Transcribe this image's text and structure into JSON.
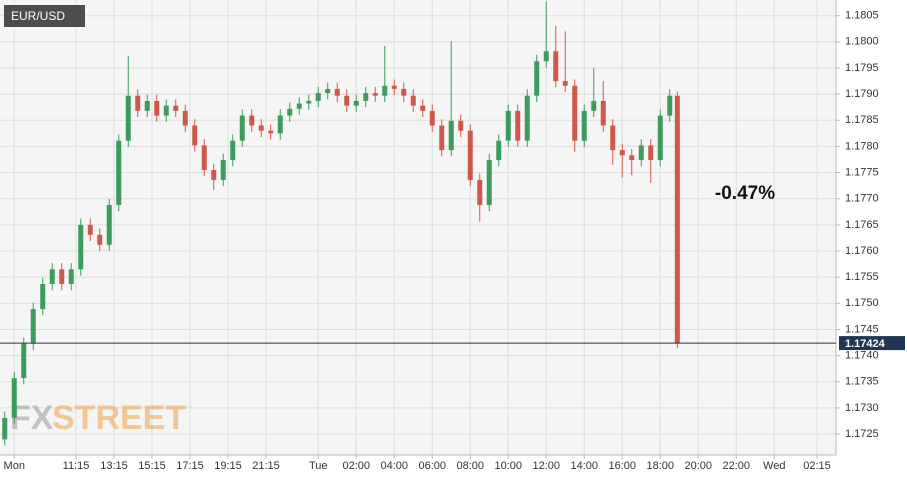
{
  "chart_data": {
    "type": "candlestick",
    "title": "EUR/USD",
    "annotation": "-0.47%",
    "watermark": [
      "FX",
      "STREET"
    ],
    "last_price": 1.17424,
    "up_color": "#3d9b5e",
    "down_color": "#d0584a",
    "grid": true,
    "xlim": [
      7.25,
      51.25
    ],
    "ylim": [
      1.1721,
      1.1808
    ],
    "xticks": [
      {
        "value": 8,
        "label": "Mon"
      },
      {
        "value": 11.25,
        "label": "11:15"
      },
      {
        "value": 13.25,
        "label": "13:15"
      },
      {
        "value": 15.25,
        "label": "15:15"
      },
      {
        "value": 17.25,
        "label": "17:15"
      },
      {
        "value": 19.25,
        "label": "19:15"
      },
      {
        "value": 21.25,
        "label": "21:15"
      },
      {
        "value": 24,
        "label": "Tue"
      },
      {
        "value": 26,
        "label": "02:00"
      },
      {
        "value": 28,
        "label": "04:00"
      },
      {
        "value": 30,
        "label": "06:00"
      },
      {
        "value": 32,
        "label": "08:00"
      },
      {
        "value": 34,
        "label": "10:00"
      },
      {
        "value": 36,
        "label": "12:00"
      },
      {
        "value": 38,
        "label": "14:00"
      },
      {
        "value": 40,
        "label": "16:00"
      },
      {
        "value": 42,
        "label": "18:00"
      },
      {
        "value": 44,
        "label": "20:00"
      },
      {
        "value": 46,
        "label": "22:00"
      },
      {
        "value": 48,
        "label": "Wed"
      },
      {
        "value": 50.25,
        "label": "02:15"
      }
    ],
    "yticks": [
      1.1725,
      {
        "value": 1.173,
        "label": "1.1730"
      },
      1.1735,
      {
        "value": 1.174,
        "label": "1.1740"
      },
      1.1745,
      {
        "value": 1.175,
        "label": "1.1750"
      },
      1.1755,
      {
        "value": 1.176,
        "label": "1.1760"
      },
      1.1765,
      {
        "value": 1.177,
        "label": "1.1770"
      },
      1.1775,
      {
        "value": 1.178,
        "label": "1.1780"
      },
      1.1785,
      {
        "value": 1.179,
        "label": "1.1790"
      },
      1.1795,
      {
        "value": 1.18,
        "label": "1.1800"
      },
      1.1805
    ],
    "x": [
      7.5,
      8,
      8.5,
      9,
      9.5,
      10,
      10.5,
      11,
      11.5,
      12,
      12.5,
      13,
      13.5,
      14,
      14.5,
      15,
      15.5,
      16,
      16.5,
      17,
      17.5,
      18,
      18.5,
      19,
      19.5,
      20,
      20.5,
      21,
      21.5,
      22,
      22.5,
      23,
      23.5,
      24,
      24.5,
      25,
      25.5,
      26,
      26.5,
      27,
      27.5,
      28,
      28.5,
      29,
      29.5,
      30,
      30.5,
      31,
      31.5,
      32,
      32.5,
      33,
      33.5,
      34,
      34.5,
      35,
      35.5,
      36,
      36.5,
      37,
      37.5,
      38,
      38.5,
      39,
      39.5,
      40,
      40.5,
      41,
      41.5,
      42,
      42.5,
      42.9
    ],
    "open": [
      1.1724,
      1.17281,
      1.17357,
      1.17423,
      1.17489,
      1.17537,
      1.17565,
      1.17537,
      1.17565,
      1.1765,
      1.17631,
      1.17612,
      1.17688,
      1.17811,
      1.17897,
      1.17868,
      1.17887,
      1.17859,
      1.17878,
      1.17868,
      1.1784,
      1.17802,
      1.17755,
      1.17736,
      1.17774,
      1.17811,
      1.17859,
      1.1784,
      1.1783,
      1.17825,
      1.17859,
      1.17872,
      1.17882,
      1.17887,
      1.17902,
      1.1791,
      1.17897,
      1.17878,
      1.17887,
      1.17902,
      1.17897,
      1.17916,
      1.1791,
      1.17897,
      1.17878,
      1.17868,
      1.1784,
      1.17793,
      1.17849,
      1.1783,
      1.17736,
      1.17688,
      1.17774,
      1.17811,
      1.17868,
      1.17811,
      1.17897,
      1.17963,
      1.17982,
      1.17925,
      1.17916,
      1.17811,
      1.17868,
      1.17887,
      1.1784,
      1.17793,
      1.17783,
      1.17774,
      1.17802,
      1.17774,
      1.17859,
      1.17897
    ],
    "high": [
      1.17293,
      1.17369,
      1.17435,
      1.17501,
      1.17549,
      1.17577,
      1.17577,
      1.17577,
      1.17662,
      1.17662,
      1.17643,
      1.177,
      1.17823,
      1.17973,
      1.17909,
      1.17899,
      1.17899,
      1.1789,
      1.1789,
      1.1788,
      1.17852,
      1.17814,
      1.17767,
      1.17786,
      1.17823,
      1.17871,
      1.17871,
      1.17852,
      1.17842,
      1.17871,
      1.17884,
      1.17894,
      1.17899,
      1.17914,
      1.17922,
      1.17922,
      1.17909,
      1.17899,
      1.17914,
      1.17914,
      1.17992,
      1.17928,
      1.17922,
      1.17909,
      1.1789,
      1.1788,
      1.17852,
      1.18001,
      1.17861,
      1.17842,
      1.17748,
      1.17786,
      1.17823,
      1.1788,
      1.1788,
      1.17909,
      1.17975,
      1.18077,
      1.1803,
      1.1802,
      1.17928,
      1.1788,
      1.1795,
      1.17925,
      1.17852,
      1.17805,
      1.17795,
      1.17814,
      1.17814,
      1.17871,
      1.17909,
      1.17905
    ],
    "low": [
      1.17228,
      1.17269,
      1.17345,
      1.17411,
      1.17477,
      1.17525,
      1.17525,
      1.17525,
      1.17553,
      1.17619,
      1.176,
      1.176,
      1.17676,
      1.17799,
      1.17856,
      1.17856,
      1.17847,
      1.17847,
      1.17856,
      1.17828,
      1.1779,
      1.17743,
      1.17717,
      1.17724,
      1.17762,
      1.17799,
      1.17828,
      1.17818,
      1.17813,
      1.17813,
      1.17847,
      1.1786,
      1.1787,
      1.17875,
      1.1789,
      1.17885,
      1.17866,
      1.17866,
      1.17875,
      1.17885,
      1.17885,
      1.17898,
      1.17885,
      1.17866,
      1.17856,
      1.17828,
      1.17781,
      1.17781,
      1.17818,
      1.17724,
      1.17656,
      1.17676,
      1.17762,
      1.17799,
      1.17799,
      1.17799,
      1.17885,
      1.17951,
      1.17913,
      1.17904,
      1.1779,
      1.17799,
      1.17856,
      1.17828,
      1.17765,
      1.1774,
      1.17745,
      1.17762,
      1.1773,
      1.17762,
      1.17847,
      1.17415
    ],
    "close": [
      1.17281,
      1.17357,
      1.17423,
      1.17489,
      1.17537,
      1.17565,
      1.17537,
      1.17565,
      1.1765,
      1.17631,
      1.17612,
      1.17688,
      1.17811,
      1.17897,
      1.17868,
      1.17887,
      1.17859,
      1.17878,
      1.17868,
      1.1784,
      1.17802,
      1.17755,
      1.17736,
      1.17774,
      1.17811,
      1.17859,
      1.1784,
      1.1783,
      1.17825,
      1.17859,
      1.17872,
      1.17882,
      1.17887,
      1.17902,
      1.1791,
      1.17897,
      1.17878,
      1.17887,
      1.17902,
      1.17897,
      1.17916,
      1.1791,
      1.17897,
      1.17878,
      1.17868,
      1.1784,
      1.17793,
      1.17849,
      1.1783,
      1.17736,
      1.17688,
      1.17774,
      1.17811,
      1.17868,
      1.17811,
      1.17897,
      1.17963,
      1.17982,
      1.17925,
      1.17916,
      1.17811,
      1.17868,
      1.17887,
      1.1784,
      1.17793,
      1.17783,
      1.17774,
      1.17802,
      1.17774,
      1.17859,
      1.17897,
      1.17424
    ]
  }
}
